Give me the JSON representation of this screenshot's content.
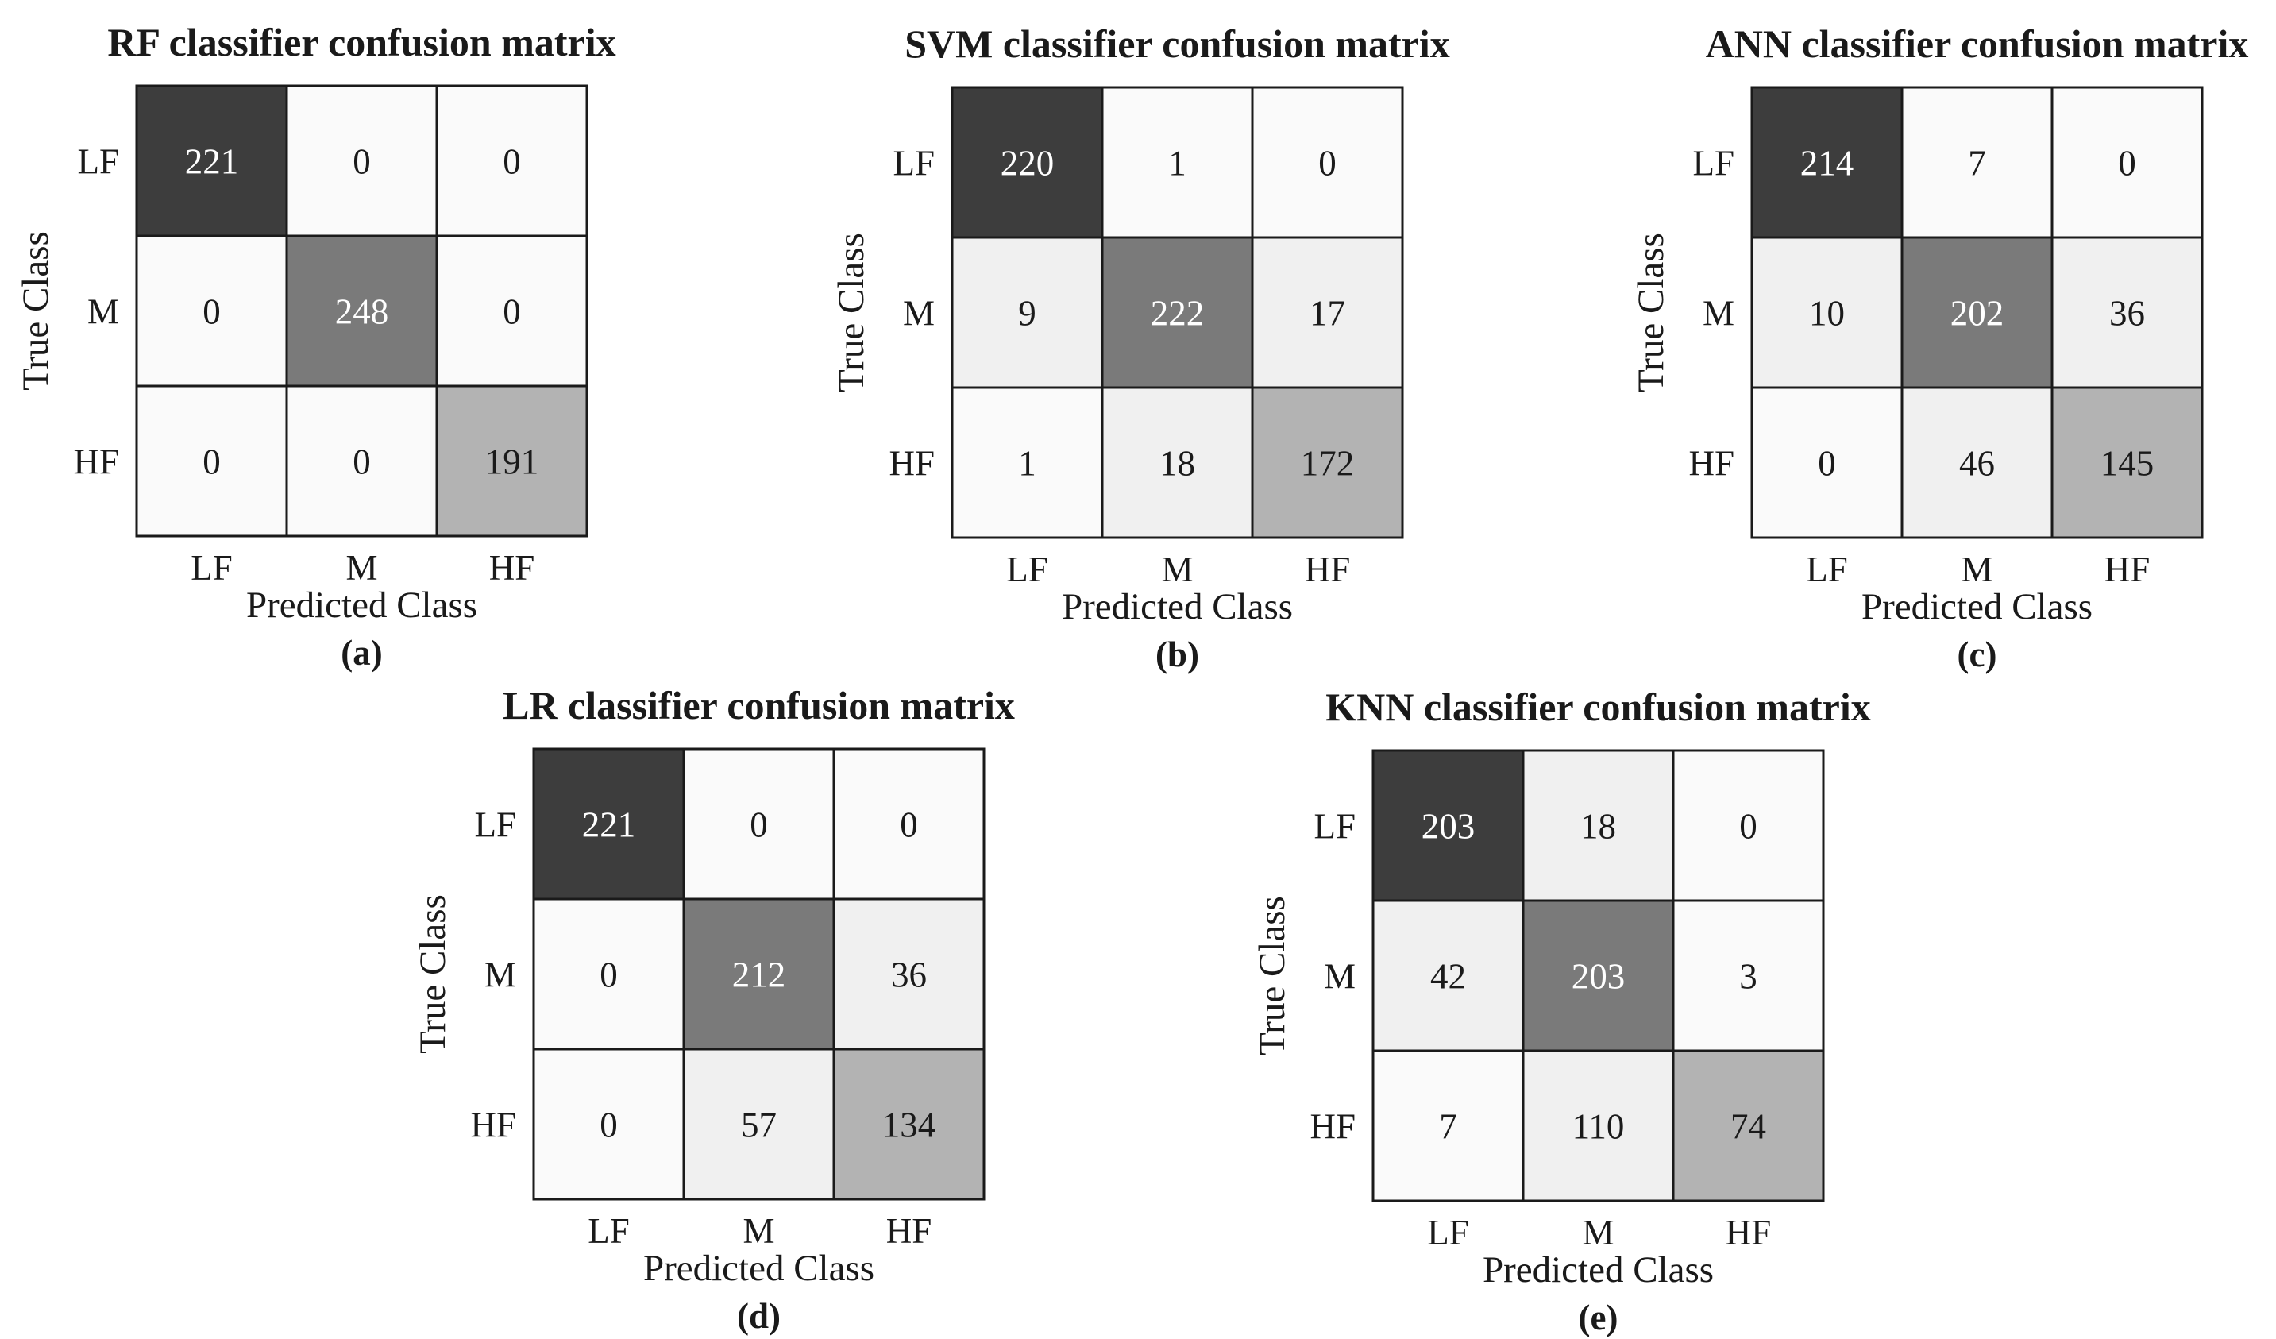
{
  "chart_data": [
    {
      "type": "heatmap",
      "panel": "(a)",
      "title": "RF classifier confusion matrix",
      "xlabel": "Predicted Class",
      "ylabel": "True Class",
      "x_categories": [
        "LF",
        "M",
        "HF"
      ],
      "y_categories": [
        "LF",
        "M",
        "HF"
      ],
      "values": [
        [
          221,
          0,
          0
        ],
        [
          0,
          248,
          0
        ],
        [
          0,
          0,
          191
        ]
      ]
    },
    {
      "type": "heatmap",
      "panel": "(b)",
      "title": "SVM classifier confusion matrix",
      "xlabel": "Predicted Class",
      "ylabel": "True Class",
      "x_categories": [
        "LF",
        "M",
        "HF"
      ],
      "y_categories": [
        "LF",
        "M",
        "HF"
      ],
      "values": [
        [
          220,
          1,
          0
        ],
        [
          9,
          222,
          17
        ],
        [
          1,
          18,
          172
        ]
      ]
    },
    {
      "type": "heatmap",
      "panel": "(c)",
      "title": "ANN classifier confusion matrix",
      "xlabel": "Predicted Class",
      "ylabel": "True Class",
      "x_categories": [
        "LF",
        "M",
        "HF"
      ],
      "y_categories": [
        "LF",
        "M",
        "HF"
      ],
      "values": [
        [
          214,
          7,
          0
        ],
        [
          10,
          202,
          36
        ],
        [
          0,
          46,
          145
        ]
      ]
    },
    {
      "type": "heatmap",
      "panel": "(d)",
      "title": "LR classifier confusion matrix",
      "xlabel": "Predicted Class",
      "ylabel": "True Class",
      "x_categories": [
        "LF",
        "M",
        "HF"
      ],
      "y_categories": [
        "LF",
        "M",
        "HF"
      ],
      "values": [
        [
          221,
          0,
          0
        ],
        [
          0,
          212,
          36
        ],
        [
          0,
          57,
          134
        ]
      ]
    },
    {
      "type": "heatmap",
      "panel": "(e)",
      "title": "KNN classifier confusion matrix",
      "xlabel": "Predicted Class",
      "ylabel": "True Class",
      "x_categories": [
        "LF",
        "M",
        "HF"
      ],
      "y_categories": [
        "LF",
        "M",
        "HF"
      ],
      "values": [
        [
          203,
          18,
          0
        ],
        [
          42,
          203,
          3
        ],
        [
          7,
          110,
          74
        ]
      ]
    }
  ],
  "colors": {
    "diag_lf": "#3d3d3d",
    "diag_m": "#7a7a7a",
    "diag_hf": "#b3b3b3",
    "offdiag_low": "#fafafa",
    "offdiag_mid": "#f0f0f0",
    "grid": "#1a1a1a",
    "text_dark": "#1a1a1a",
    "text_light": "#ffffff"
  }
}
